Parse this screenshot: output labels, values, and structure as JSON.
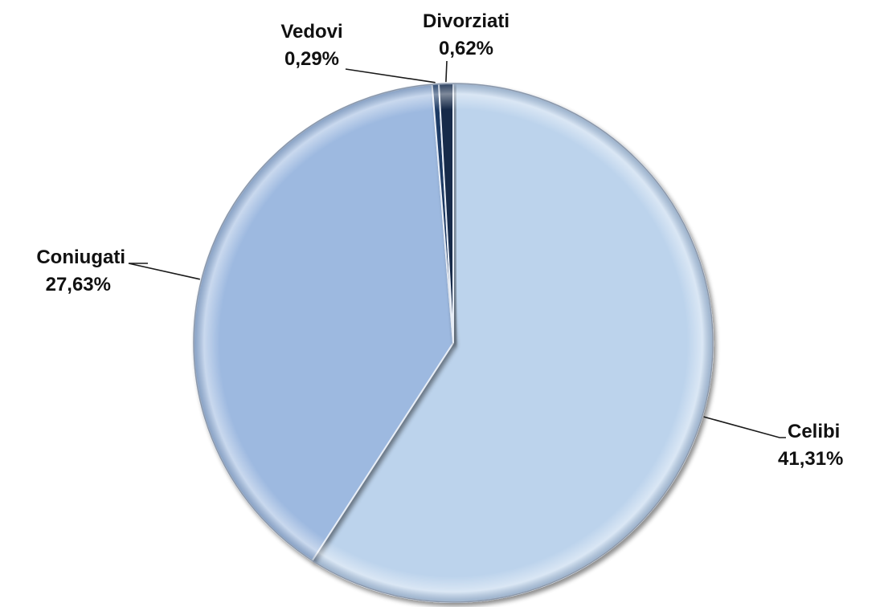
{
  "chart_data": {
    "type": "pie",
    "title": "",
    "slices": [
      {
        "name": "Celibi",
        "value": 41.31,
        "value_label": "41,31%",
        "color": "#bcd3ec"
      },
      {
        "name": "Coniugati",
        "value": 27.63,
        "value_label": "27,63%",
        "color": "#9db9e0"
      },
      {
        "name": "Vedovi",
        "value": 0.29,
        "value_label": "0,29%",
        "color": "#1f3a66"
      },
      {
        "name": "Divorziati",
        "value": 0.62,
        "value_label": "0,62%",
        "color": "#16294a"
      }
    ],
    "start_angle_deg": 0,
    "direction": "clockwise",
    "labels": "outside with leader lines",
    "legend": "none"
  }
}
